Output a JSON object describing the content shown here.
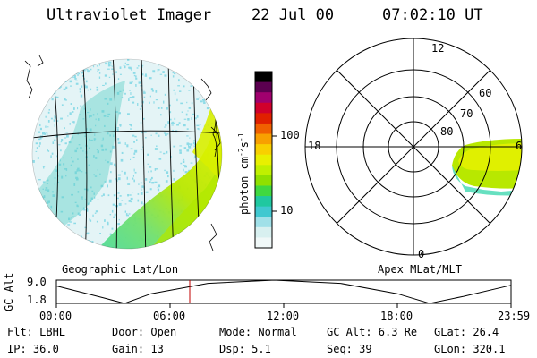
{
  "header": {
    "instrument": "Ultraviolet Imager",
    "date": "22 Jul 00",
    "time": "07:02:10 UT"
  },
  "colorbar": {
    "unit_label": "photon cm",
    "exp1": "-2",
    "s_label": "s",
    "exp2": "-1",
    "tick_100": "100",
    "tick_10": "10",
    "colors": [
      "#000000",
      "#5b0050",
      "#a0006e",
      "#d0002c",
      "#e02000",
      "#f06000",
      "#f8a000",
      "#f8d000",
      "#e8f000",
      "#c0f000",
      "#90e000",
      "#40d840",
      "#20c8a0",
      "#40c8d0",
      "#a0e0e8",
      "#d8f0f0",
      "#f0f8f8"
    ]
  },
  "left_panel": {
    "caption": "Geographic Lat/Lon"
  },
  "right_panel": {
    "caption": "Apex MLat/MLT",
    "mlt_12": "12",
    "mlt_18": "18",
    "mlt_6": "6",
    "mlt_0": "0",
    "lat_60": "60",
    "lat_70": "70",
    "lat_80": "80"
  },
  "altitude_plot": {
    "ylabel": "GC Alt",
    "y_top": "9.0",
    "y_bottom": "1.8",
    "x_ticks": [
      "00:00",
      "06:00",
      "12:00",
      "18:00",
      "23:59"
    ],
    "current_time_hours": 7.04,
    "alt_min_re": 1.8,
    "alt_max_re": 9.0,
    "orbit_points": [
      {
        "h": 0,
        "alt": 7.2
      },
      {
        "h": 2.5,
        "alt": 3.5
      },
      {
        "h": 3.6,
        "alt": 1.8
      },
      {
        "h": 5,
        "alt": 4.8
      },
      {
        "h": 8,
        "alt": 8.0
      },
      {
        "h": 11.5,
        "alt": 9.0
      },
      {
        "h": 15,
        "alt": 8.0
      },
      {
        "h": 18,
        "alt": 4.8
      },
      {
        "h": 19.7,
        "alt": 1.8
      },
      {
        "h": 21.5,
        "alt": 4.0
      },
      {
        "h": 23.98,
        "alt": 7.4
      }
    ]
  },
  "footer": {
    "filter": "Flt: LBHL",
    "door": "Door: Open",
    "mode": "Mode: Normal",
    "gc_alt": "GC Alt: 6.3 Re",
    "glat": "GLat:  26.4",
    "ip": "IP: 36.0",
    "gain": "Gain: 13",
    "dsp": "Dsp:    5.1",
    "seq": "Seq: 39",
    "glon": "GLon: 320.1"
  }
}
